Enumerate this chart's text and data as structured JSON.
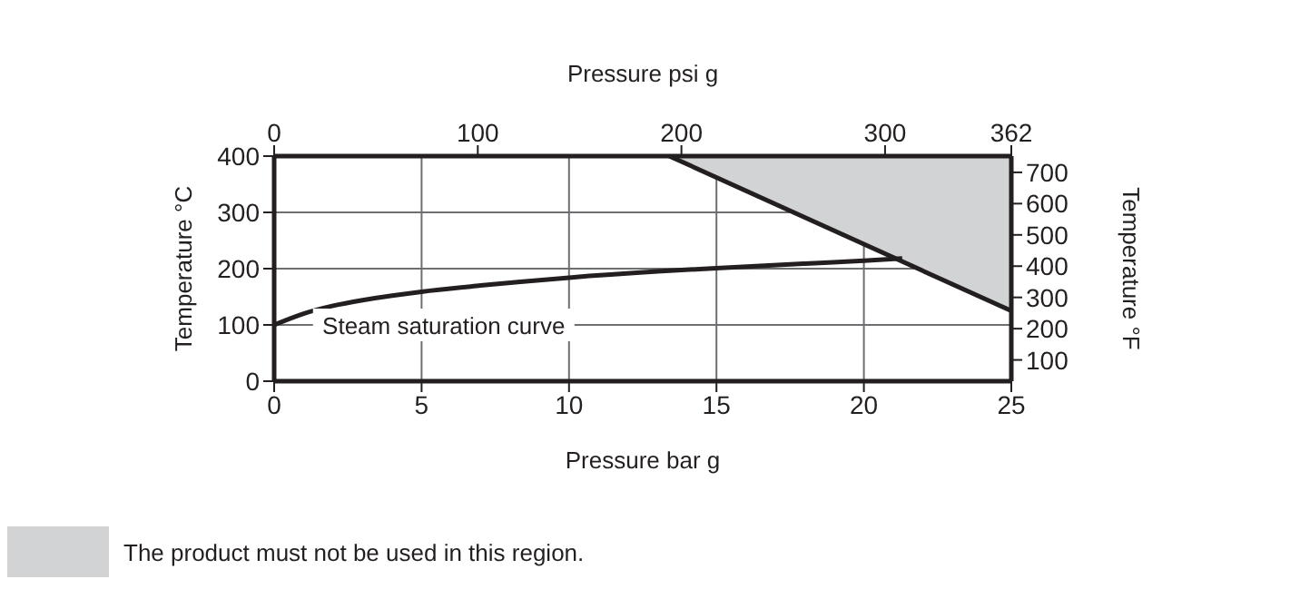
{
  "chart_data": {
    "type": "line",
    "xlabel": "Pressure bar g",
    "ylabel": "Temperature °C",
    "y2label": "Temperature °F",
    "x2label": "Pressure psi g",
    "xlim": [
      0,
      25
    ],
    "xticks": [
      0,
      5,
      10,
      15,
      20,
      25
    ],
    "ylim": [
      0,
      400
    ],
    "yticks": [
      0,
      100,
      200,
      300,
      400
    ],
    "y2lim": [
      32,
      752
    ],
    "y2ticks": [
      100,
      200,
      300,
      400,
      500,
      600,
      700
    ],
    "x2lim": [
      0,
      362
    ],
    "x2ticks": [
      0,
      100,
      200,
      300,
      362
    ],
    "grid": true,
    "legend": "bottom left",
    "series": [
      {
        "name": "The product must not be used in this region.",
        "type": "area",
        "color": "#d1d3d4",
        "x": [
          13.4,
          25
        ],
        "values": [
          400,
          125
        ]
      },
      {
        "name": "Steam saturation curve",
        "color": "#231f20",
        "x": [
          0,
          1,
          2,
          3,
          4,
          5,
          7,
          10,
          13,
          15,
          18,
          20,
          21.3
        ],
        "values": [
          100,
          120,
          134,
          144,
          152,
          159,
          170,
          184,
          195,
          201,
          209,
          214,
          218
        ]
      }
    ]
  }
}
